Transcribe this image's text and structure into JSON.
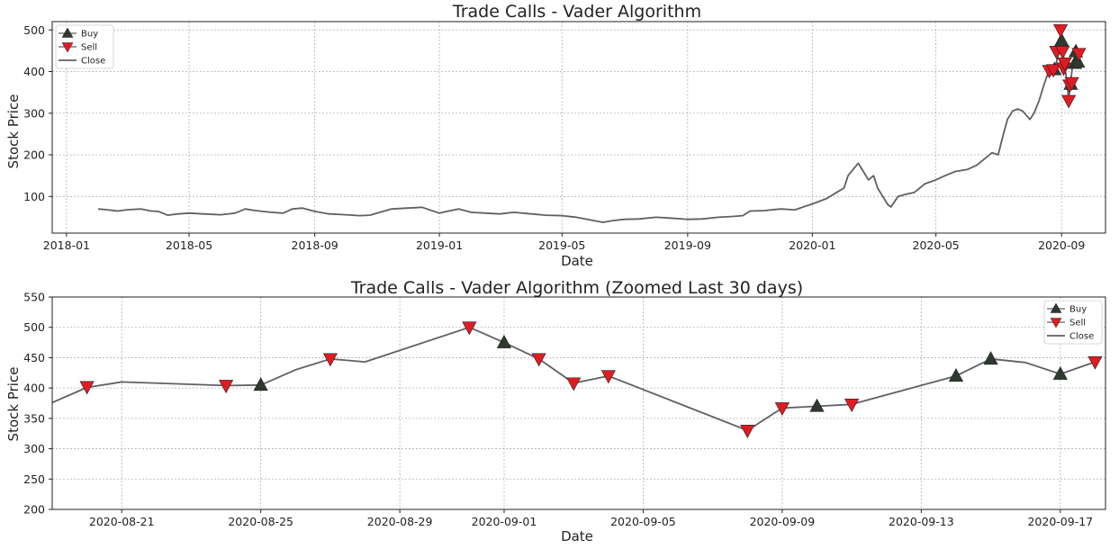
{
  "chart_data": [
    {
      "type": "line",
      "title": "Trade Calls - Vader Algorithm",
      "xlabel": "Date",
      "ylabel": "Stock Price",
      "xlim": [
        "2017-12-18",
        "2020-10-14"
      ],
      "ylim": [
        12,
        520
      ],
      "x_ticks": [
        "2018-01",
        "2018-05",
        "2018-09",
        "2019-01",
        "2019-05",
        "2019-09",
        "2020-01",
        "2020-05",
        "2020-09"
      ],
      "y_ticks": [
        100,
        200,
        300,
        400,
        500
      ],
      "grid": true,
      "legend_position": "top-left",
      "legend": [
        "Buy",
        "Sell",
        "Close"
      ],
      "colors": {
        "close": "#5f5f66",
        "buy": "#2e3a2e",
        "sell": "#e01b22"
      },
      "close": {
        "x": [
          "2018-02-01",
          "2018-02-10",
          "2018-02-20",
          "2018-03-01",
          "2018-03-15",
          "2018-03-25",
          "2018-04-01",
          "2018-04-10",
          "2018-04-20",
          "2018-05-01",
          "2018-05-15",
          "2018-06-01",
          "2018-06-15",
          "2018-06-25",
          "2018-07-05",
          "2018-07-20",
          "2018-08-01",
          "2018-08-10",
          "2018-08-20",
          "2018-09-01",
          "2018-09-15",
          "2018-10-01",
          "2018-10-15",
          "2018-10-25",
          "2018-11-01",
          "2018-11-15",
          "2018-12-01",
          "2018-12-15",
          "2019-01-01",
          "2019-01-10",
          "2019-01-20",
          "2019-02-01",
          "2019-02-15",
          "2019-03-01",
          "2019-03-15",
          "2019-04-01",
          "2019-04-15",
          "2019-05-01",
          "2019-05-15",
          "2019-06-01",
          "2019-06-10",
          "2019-06-20",
          "2019-07-01",
          "2019-07-15",
          "2019-08-01",
          "2019-08-15",
          "2019-09-01",
          "2019-09-15",
          "2019-10-01",
          "2019-10-15",
          "2019-10-25",
          "2019-11-01",
          "2019-11-15",
          "2019-12-01",
          "2019-12-15",
          "2020-01-01",
          "2020-01-15",
          "2020-01-25",
          "2020-02-01",
          "2020-02-05",
          "2020-02-10",
          "2020-02-15",
          "2020-02-20",
          "2020-02-25",
          "2020-03-01",
          "2020-03-05",
          "2020-03-10",
          "2020-03-15",
          "2020-03-18",
          "2020-03-25",
          "2020-04-01",
          "2020-04-10",
          "2020-04-20",
          "2020-05-01",
          "2020-05-10",
          "2020-05-20",
          "2020-06-01",
          "2020-06-10",
          "2020-06-20",
          "2020-06-25",
          "2020-07-01",
          "2020-07-05",
          "2020-07-10",
          "2020-07-15",
          "2020-07-20",
          "2020-07-25",
          "2020-08-01",
          "2020-08-05",
          "2020-08-10",
          "2020-08-15",
          "2020-08-20",
          "2020-08-25",
          "2020-09-01",
          "2020-09-04",
          "2020-09-08",
          "2020-09-12",
          "2020-09-17"
        ],
        "y": [
          70,
          68,
          65,
          68,
          70,
          65,
          64,
          55,
          58,
          60,
          58,
          56,
          60,
          70,
          66,
          62,
          60,
          70,
          72,
          64,
          58,
          56,
          54,
          55,
          60,
          70,
          72,
          74,
          60,
          65,
          70,
          62,
          60,
          58,
          62,
          58,
          55,
          54,
          50,
          42,
          38,
          42,
          45,
          46,
          50,
          48,
          45,
          46,
          50,
          52,
          54,
          65,
          66,
          70,
          68,
          82,
          95,
          110,
          120,
          150,
          165,
          180,
          160,
          140,
          150,
          120,
          100,
          80,
          75,
          100,
          105,
          110,
          130,
          140,
          150,
          160,
          165,
          175,
          195,
          205,
          200,
          240,
          285,
          305,
          310,
          305,
          285,
          300,
          330,
          370,
          405,
          405,
          470,
          420,
          335,
          420,
          425
        ]
      },
      "buy": {
        "x": [
          "2020-08-25",
          "2020-09-01",
          "2020-09-10",
          "2020-09-14",
          "2020-09-15",
          "2020-09-17"
        ],
        "y": [
          405,
          475,
          370,
          420,
          448,
          423
        ]
      },
      "sell": {
        "x": [
          "2020-08-20",
          "2020-08-24",
          "2020-08-27",
          "2020-08-31",
          "2020-09-02",
          "2020-09-03",
          "2020-09-04",
          "2020-09-08",
          "2020-09-09",
          "2020-09-11",
          "2020-09-18"
        ],
        "y": [
          402,
          404,
          448,
          500,
          448,
          408,
          420,
          330,
          367,
          373,
          443
        ]
      }
    },
    {
      "type": "line",
      "title": "Trade Calls - Vader Algorithm (Zoomed Last 30 days)",
      "xlabel": "Date",
      "ylabel": "Stock Price",
      "xlim": [
        "2020-08-19",
        "2020-09-18.3"
      ],
      "ylim": [
        200,
        550
      ],
      "x_ticks": [
        "2020-08-21",
        "2020-08-25",
        "2020-08-29",
        "2020-09-01",
        "2020-09-05",
        "2020-09-09",
        "2020-09-13",
        "2020-09-17"
      ],
      "y_ticks": [
        200,
        250,
        300,
        350,
        400,
        450,
        500,
        550
      ],
      "grid": true,
      "legend_position": "top-right",
      "legend": [
        "Buy",
        "Sell",
        "Close"
      ],
      "colors": {
        "close": "#5f5f66",
        "buy": "#2e3a2e",
        "sell": "#e01b22"
      },
      "close": {
        "x": [
          "2020-08-19",
          "2020-08-20",
          "2020-08-21",
          "2020-08-24",
          "2020-08-25",
          "2020-08-26",
          "2020-08-27",
          "2020-08-28",
          "2020-08-31",
          "2020-09-01",
          "2020-09-02",
          "2020-09-03",
          "2020-09-04",
          "2020-09-08",
          "2020-09-09",
          "2020-09-10",
          "2020-09-11",
          "2020-09-14",
          "2020-09-15",
          "2020-09-16",
          "2020-09-17",
          "2020-09-18"
        ],
        "y": [
          376,
          401,
          410,
          404,
          405,
          430,
          448,
          443,
          500,
          475,
          448,
          408,
          420,
          330,
          367,
          370,
          373,
          420,
          448,
          442,
          423,
          443
        ]
      },
      "buy": {
        "x": [
          "2020-08-25",
          "2020-09-01",
          "2020-09-10",
          "2020-09-14",
          "2020-09-15",
          "2020-09-17"
        ],
        "y": [
          405,
          475,
          370,
          420,
          448,
          423
        ]
      },
      "sell": {
        "x": [
          "2020-08-20",
          "2020-08-24",
          "2020-08-27",
          "2020-08-31",
          "2020-09-02",
          "2020-09-03",
          "2020-09-04",
          "2020-09-08",
          "2020-09-09",
          "2020-09-11",
          "2020-09-18"
        ],
        "y": [
          402,
          404,
          448,
          500,
          448,
          408,
          420,
          330,
          367,
          373,
          443
        ]
      }
    }
  ]
}
